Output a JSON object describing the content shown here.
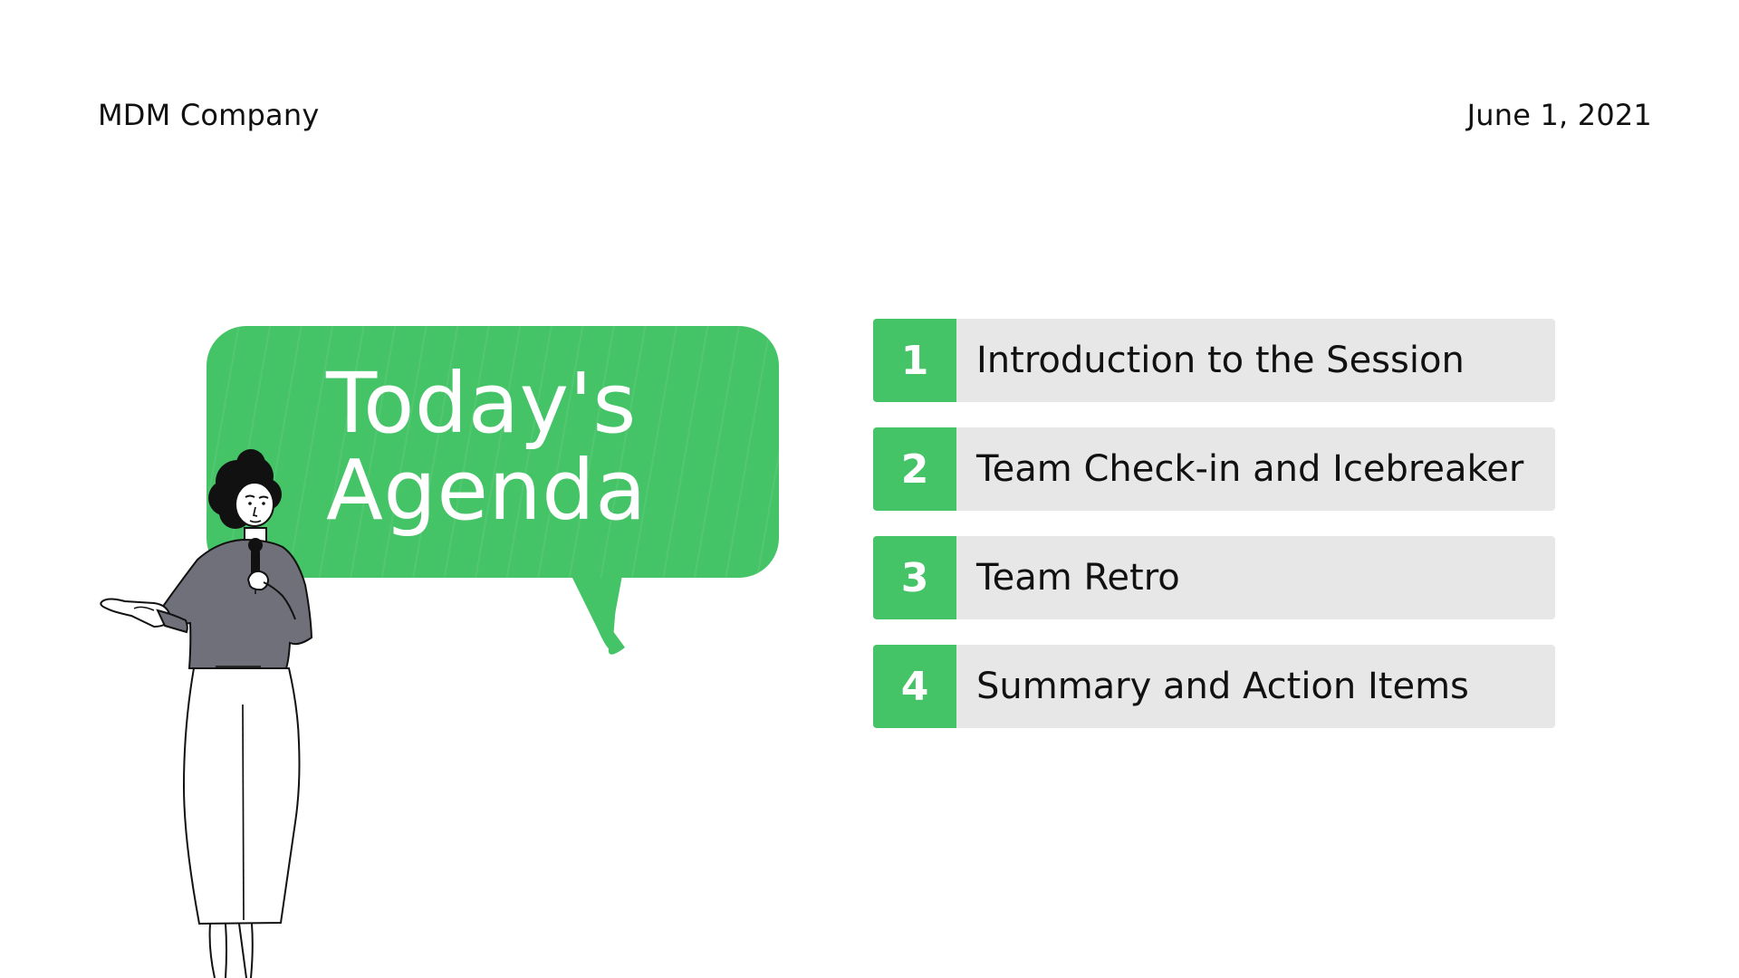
{
  "header": {
    "company": "MDM Company",
    "date": "June 1, 2021"
  },
  "bubble": {
    "title_line_1": "Today's",
    "title_line_2": "Agenda"
  },
  "agenda": {
    "items": [
      {
        "number": "1",
        "label": "Introduction to the Session"
      },
      {
        "number": "2",
        "label": "Team Check-in and Icebreaker"
      },
      {
        "number": "3",
        "label": "Team Retro"
      },
      {
        "number": "4",
        "label": "Summary and Action Items"
      }
    ]
  },
  "colors": {
    "accent": "#45c367",
    "item_background": "#e7e7e7",
    "text": "#111111"
  }
}
